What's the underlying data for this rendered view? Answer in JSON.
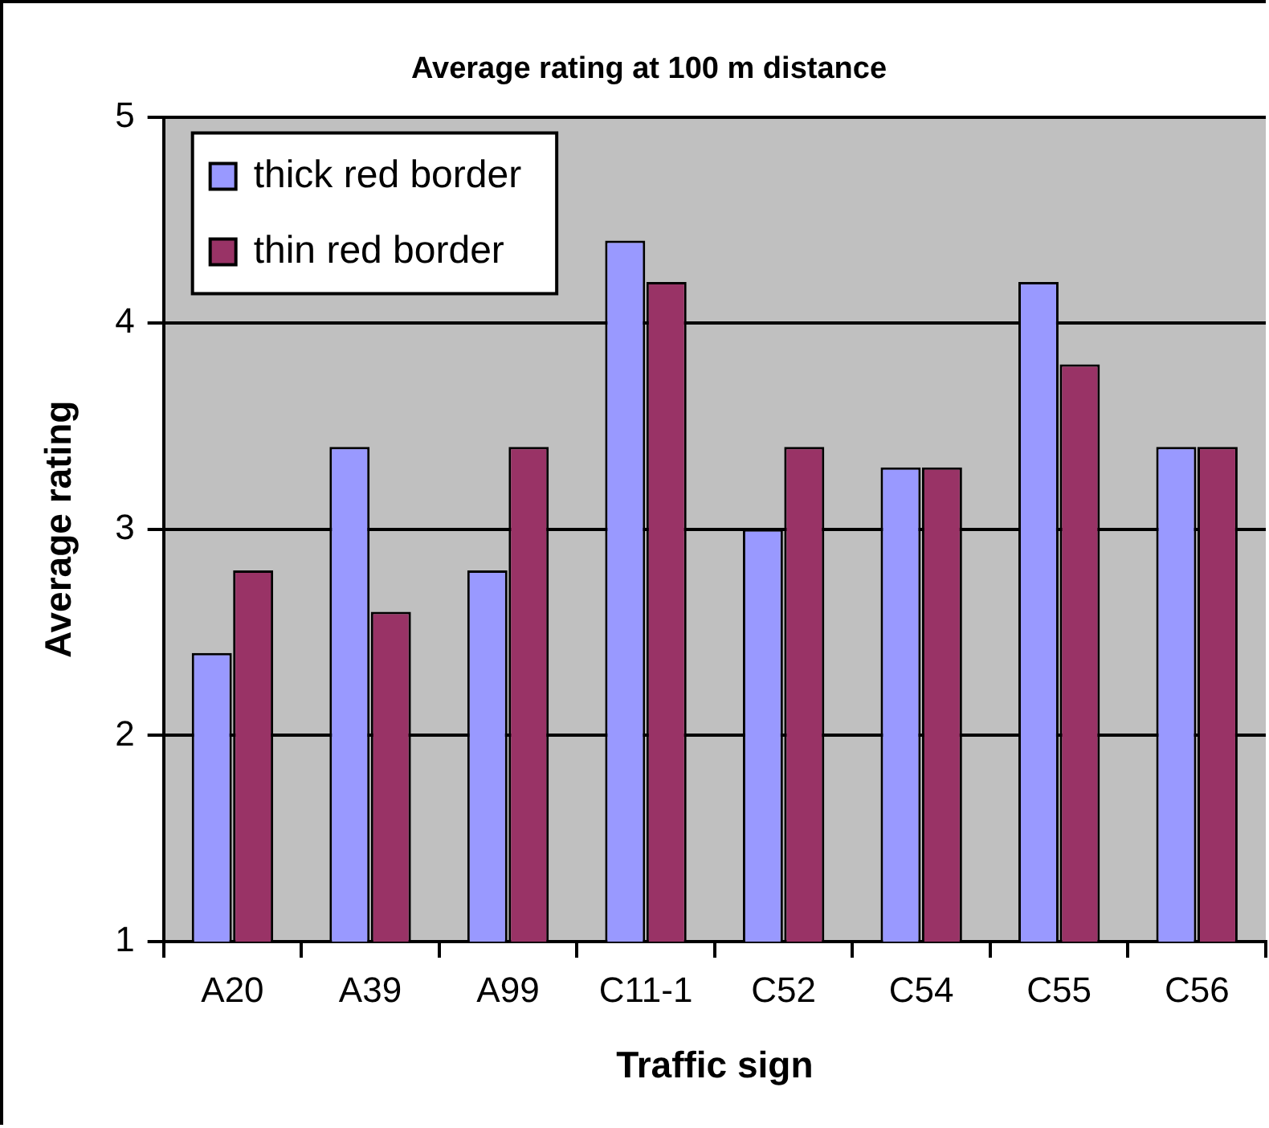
{
  "chart_data": {
    "type": "bar",
    "title": "Average rating at 100 m distance",
    "xlabel": "Traffic sign",
    "ylabel": "Average rating",
    "categories": [
      "A20",
      "A39",
      "A99",
      "C11-1",
      "C52",
      "C54",
      "C55",
      "C56"
    ],
    "series": [
      {
        "name": "thick red border",
        "color": "#9999ff",
        "values": [
          2.4,
          3.4,
          2.8,
          4.4,
          3.0,
          3.3,
          4.2,
          3.4
        ]
      },
      {
        "name": "thin red border",
        "color": "#993366",
        "values": [
          2.8,
          2.6,
          3.4,
          4.2,
          3.4,
          3.3,
          3.8,
          3.4
        ]
      }
    ],
    "ylim": [
      1,
      5
    ],
    "yticks": [
      1,
      2,
      3,
      4,
      5
    ],
    "grid": "y",
    "legend": "top left"
  }
}
